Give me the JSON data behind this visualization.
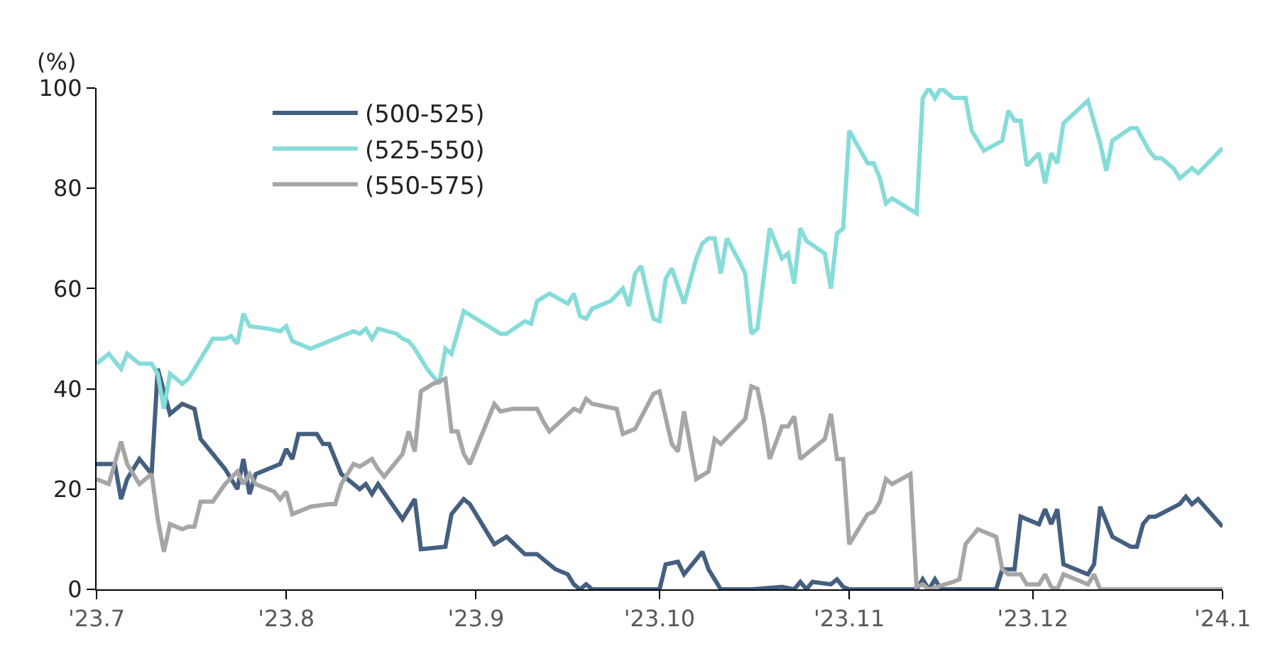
{
  "chart_data": {
    "type": "line",
    "ylabel": "(%)",
    "legend": "top left",
    "line_style": "solid",
    "marker": "none",
    "xlim": [
      "2023-07-01",
      "2024-01-01"
    ],
    "xticks": [
      {
        "value": "2023-07-01",
        "label": "'23.7"
      },
      {
        "value": "2023-08-01",
        "label": "'23.8"
      },
      {
        "value": "2023-09-01",
        "label": "'23.9"
      },
      {
        "value": "2023-10-01",
        "label": "'23.10"
      },
      {
        "value": "2023-11-01",
        "label": "'23.11"
      },
      {
        "value": "2023-12-01",
        "label": "'23.12"
      },
      {
        "value": "2024-01-01",
        "label": "'24.1"
      }
    ],
    "ylim": [
      0,
      100
    ],
    "yticks": [
      0,
      20,
      40,
      60,
      80,
      100
    ],
    "series": [
      {
        "name": "(500-525)",
        "color": "#445f80",
        "x": [
          "2023-07-01",
          "2023-07-04",
          "2023-07-05",
          "2023-07-06",
          "2023-07-08",
          "2023-07-10",
          "2023-07-11",
          "2023-07-13",
          "2023-07-15",
          "2023-07-17",
          "2023-07-18",
          "2023-07-22",
          "2023-07-24",
          "2023-07-25",
          "2023-07-26",
          "2023-07-27",
          "2023-07-31",
          "2023-08-01",
          "2023-08-02",
          "2023-08-03",
          "2023-08-06",
          "2023-08-07",
          "2023-08-08",
          "2023-08-10",
          "2023-08-13",
          "2023-08-14",
          "2023-08-15",
          "2023-08-16",
          "2023-08-20",
          "2023-08-22",
          "2023-08-23",
          "2023-08-27",
          "2023-08-28",
          "2023-08-30",
          "2023-08-31",
          "2023-09-03",
          "2023-09-04",
          "2023-09-06",
          "2023-09-09",
          "2023-09-11",
          "2023-09-14",
          "2023-09-16",
          "2023-09-17",
          "2023-09-18",
          "2023-09-19",
          "2023-09-20",
          "2023-10-01",
          "2023-10-02",
          "2023-10-04",
          "2023-10-05",
          "2023-10-08",
          "2023-10-09",
          "2023-10-10",
          "2023-10-11",
          "2023-10-16",
          "2023-10-21",
          "2023-10-23",
          "2023-10-24",
          "2023-10-25",
          "2023-10-26",
          "2023-10-29",
          "2023-10-30",
          "2023-10-31",
          "2023-11-01",
          "2023-11-12",
          "2023-11-13",
          "2023-11-14",
          "2023-11-15",
          "2023-11-16",
          "2023-11-25",
          "2023-11-26",
          "2023-11-28",
          "2023-11-29",
          "2023-12-02",
          "2023-12-03",
          "2023-12-04",
          "2023-12-05",
          "2023-12-06",
          "2023-12-10",
          "2023-12-11",
          "2023-12-12",
          "2023-12-14",
          "2023-12-17",
          "2023-12-18",
          "2023-12-19",
          "2023-12-20",
          "2023-12-21",
          "2023-12-25",
          "2023-12-26",
          "2023-12-27",
          "2023-12-28",
          "2024-01-01"
        ],
        "values": [
          25,
          25,
          18,
          22,
          26,
          23,
          44,
          35,
          37,
          36,
          30,
          24,
          20,
          26,
          19,
          23,
          25,
          28,
          26,
          31,
          31,
          29,
          29,
          23,
          20,
          21,
          19,
          21,
          14,
          18,
          8,
          8.5,
          15,
          18,
          17,
          11,
          9,
          10.5,
          7,
          7,
          4,
          3,
          1,
          0,
          1,
          0,
          0,
          5,
          5.5,
          3,
          7.5,
          4,
          2,
          0,
          0,
          0.5,
          0,
          1.5,
          0,
          1.5,
          1,
          2,
          0.5,
          0,
          0,
          2,
          0,
          2,
          0,
          0,
          4,
          4,
          14.5,
          13,
          16,
          13,
          16,
          5,
          3,
          5,
          16.5,
          10.5,
          8.5,
          8.5,
          13,
          14.5,
          14.5,
          17,
          18.5,
          17,
          18,
          12.5
        ]
      },
      {
        "name": "(525-550)",
        "color": "#86dcd8",
        "x": [
          "2023-07-01",
          "2023-07-03",
          "2023-07-05",
          "2023-07-06",
          "2023-07-08",
          "2023-07-10",
          "2023-07-11",
          "2023-07-12",
          "2023-07-13",
          "2023-07-15",
          "2023-07-16",
          "2023-07-17",
          "2023-07-18",
          "2023-07-20",
          "2023-07-22",
          "2023-07-23",
          "2023-07-24",
          "2023-07-25",
          "2023-07-26",
          "2023-07-29",
          "2023-07-31",
          "2023-08-01",
          "2023-08-02",
          "2023-08-05",
          "2023-08-08",
          "2023-08-12",
          "2023-08-13",
          "2023-08-14",
          "2023-08-15",
          "2023-08-16",
          "2023-08-19",
          "2023-08-20",
          "2023-08-21",
          "2023-08-22",
          "2023-08-24",
          "2023-08-26",
          "2023-08-27",
          "2023-08-28",
          "2023-08-30",
          "2023-09-05",
          "2023-09-06",
          "2023-09-09",
          "2023-09-10",
          "2023-09-11",
          "2023-09-13",
          "2023-09-16",
          "2023-09-17",
          "2023-09-18",
          "2023-09-19",
          "2023-09-20",
          "2023-09-23",
          "2023-09-25",
          "2023-09-26",
          "2023-09-27",
          "2023-09-28",
          "2023-09-29",
          "2023-09-30",
          "2023-10-01",
          "2023-10-02",
          "2023-10-03",
          "2023-10-05",
          "2023-10-07",
          "2023-10-08",
          "2023-10-09",
          "2023-10-10",
          "2023-10-11",
          "2023-10-12",
          "2023-10-14",
          "2023-10-15",
          "2023-10-16",
          "2023-10-17",
          "2023-10-19",
          "2023-10-21",
          "2023-10-22",
          "2023-10-23",
          "2023-10-24",
          "2023-10-25",
          "2023-10-28",
          "2023-10-29",
          "2023-10-30",
          "2023-10-31",
          "2023-11-01",
          "2023-11-04",
          "2023-11-05",
          "2023-11-06",
          "2023-11-07",
          "2023-11-08",
          "2023-11-12",
          "2023-11-13",
          "2023-11-14",
          "2023-11-15",
          "2023-11-16",
          "2023-11-18",
          "2023-11-20",
          "2023-11-21",
          "2023-11-23",
          "2023-11-26",
          "2023-11-27",
          "2023-11-28",
          "2023-11-29",
          "2023-11-30",
          "2023-12-02",
          "2023-12-03",
          "2023-12-04",
          "2023-12-05",
          "2023-12-06",
          "2023-12-10",
          "2023-12-12",
          "2023-12-13",
          "2023-12-14",
          "2023-12-17",
          "2023-12-18",
          "2023-12-20",
          "2023-12-21",
          "2023-12-22",
          "2023-12-24",
          "2023-12-25",
          "2023-12-27",
          "2023-12-28",
          "2024-01-01"
        ],
        "values": [
          45,
          47,
          44,
          47,
          45,
          45,
          43,
          36,
          43,
          41,
          42,
          44,
          46,
          50,
          50,
          50.5,
          49,
          55,
          52.5,
          52,
          51.5,
          52.5,
          49.5,
          48,
          49.5,
          51.5,
          51,
          52,
          50,
          52,
          51,
          50,
          49.5,
          48,
          44,
          41,
          48,
          47,
          55.5,
          51,
          51,
          53.5,
          53,
          57.5,
          59,
          57,
          59,
          54.5,
          54,
          56,
          57.5,
          60,
          56.5,
          63,
          64.5,
          59,
          54,
          53.5,
          62,
          64,
          57,
          66,
          69,
          70,
          70,
          63,
          70,
          65.5,
          63,
          51,
          52,
          72,
          66,
          67,
          61,
          72,
          69.5,
          67,
          60,
          71,
          72,
          91.5,
          85,
          85,
          82,
          77,
          78,
          75,
          98,
          100,
          98,
          100,
          98,
          98,
          91.5,
          87.5,
          89.5,
          95.5,
          93.5,
          93.5,
          84.5,
          87,
          81,
          87,
          85,
          93,
          97.5,
          89,
          83.5,
          89.5,
          92,
          92,
          87.5,
          86,
          86,
          84,
          82,
          84,
          83,
          88
        ]
      },
      {
        "name": "(550-575)",
        "color": "#a6a6a6",
        "x": [
          "2023-07-01",
          "2023-07-03",
          "2023-07-05",
          "2023-07-06",
          "2023-07-08",
          "2023-07-10",
          "2023-07-11",
          "2023-07-12",
          "2023-07-13",
          "2023-07-15",
          "2023-07-16",
          "2023-07-17",
          "2023-07-18",
          "2023-07-20",
          "2023-07-22",
          "2023-07-24",
          "2023-07-25",
          "2023-07-26",
          "2023-07-27",
          "2023-07-29",
          "2023-07-30",
          "2023-07-31",
          "2023-08-01",
          "2023-08-02",
          "2023-08-05",
          "2023-08-08",
          "2023-08-09",
          "2023-08-10",
          "2023-08-11",
          "2023-08-12",
          "2023-08-13",
          "2023-08-15",
          "2023-08-16",
          "2023-08-17",
          "2023-08-20",
          "2023-08-21",
          "2023-08-22",
          "2023-08-23",
          "2023-08-25",
          "2023-08-27",
          "2023-08-28",
          "2023-08-29",
          "2023-08-30",
          "2023-08-31",
          "2023-09-04",
          "2023-09-05",
          "2023-09-07",
          "2023-09-11",
          "2023-09-12",
          "2023-09-13",
          "2023-09-17",
          "2023-09-18",
          "2023-09-19",
          "2023-09-20",
          "2023-09-24",
          "2023-09-25",
          "2023-09-27",
          "2023-09-30",
          "2023-10-01",
          "2023-10-03",
          "2023-10-04",
          "2023-10-05",
          "2023-10-07",
          "2023-10-09",
          "2023-10-10",
          "2023-10-11",
          "2023-10-15",
          "2023-10-16",
          "2023-10-17",
          "2023-10-18",
          "2023-10-19",
          "2023-10-21",
          "2023-10-22",
          "2023-10-23",
          "2023-10-24",
          "2023-10-28",
          "2023-10-29",
          "2023-10-30",
          "2023-10-31",
          "2023-11-01",
          "2023-11-04",
          "2023-11-05",
          "2023-11-06",
          "2023-11-07",
          "2023-11-08",
          "2023-11-11",
          "2023-11-12",
          "2023-11-13",
          "2023-11-14",
          "2023-11-18",
          "2023-11-19",
          "2023-11-20",
          "2023-11-22",
          "2023-11-25",
          "2023-11-26",
          "2023-11-27",
          "2023-11-29",
          "2023-11-30",
          "2023-12-02",
          "2023-12-03",
          "2023-12-04",
          "2023-12-05",
          "2023-12-06",
          "2023-12-10",
          "2023-12-11",
          "2023-12-12",
          "2024-01-01"
        ],
        "values": [
          22,
          21,
          29.5,
          25,
          21,
          23,
          14,
          7.5,
          13,
          12,
          12.5,
          12.5,
          17.5,
          17.5,
          21,
          23.5,
          21,
          23,
          21,
          20,
          19.5,
          18,
          19.5,
          15,
          16.5,
          17,
          17,
          21,
          23,
          25,
          24.5,
          26,
          24,
          22.5,
          27,
          31.5,
          27.5,
          39.5,
          41,
          42,
          31.5,
          31.5,
          27,
          25,
          37,
          35.5,
          36,
          36,
          33.5,
          31.5,
          36,
          35.5,
          38,
          37,
          36,
          31,
          32,
          39,
          39.5,
          29,
          27.5,
          35.5,
          22,
          23.5,
          30,
          29,
          34,
          40.5,
          40,
          34,
          26,
          32.5,
          32.5,
          34.5,
          26,
          30,
          35,
          26,
          26,
          9,
          15,
          15.5,
          17.5,
          22,
          21,
          23,
          0.5,
          1,
          0,
          1.5,
          2,
          9,
          12,
          10.5,
          4,
          3,
          3,
          1,
          1,
          3,
          0.5,
          0,
          3,
          1,
          3,
          0,
          0
        ]
      }
    ]
  }
}
